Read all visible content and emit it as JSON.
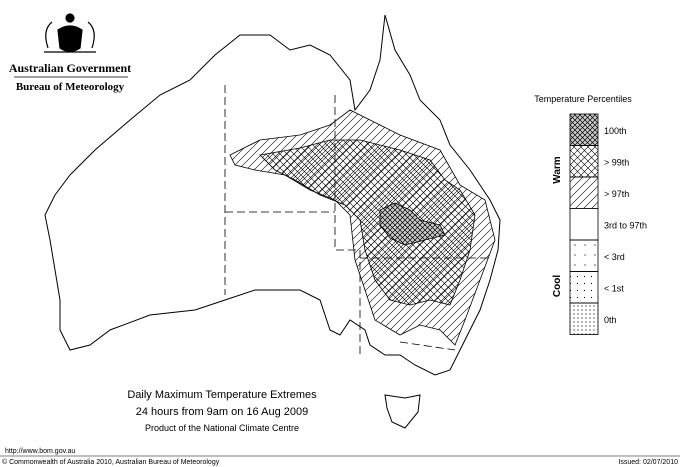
{
  "header": {
    "government": "Australian Government",
    "bureau": "Bureau of Meteorology"
  },
  "legend": {
    "title": "Temperature Percentiles",
    "warm": "Warm",
    "cool": "Cool",
    "items": [
      "100th",
      "> 99th",
      "> 97th",
      "3rd to 97th",
      "< 3rd",
      "< 1st",
      "0th"
    ]
  },
  "caption": {
    "lines": [
      "Daily Maximum Temperature Extremes",
      "24 hours from 9am on 16 Aug 2009",
      "Product of the National Climate Centre"
    ]
  },
  "footer": {
    "url": "http://www.bom.gov.au",
    "copyright": "© Commonwealth of Australia 2010, Australian Bureau of Meteorology",
    "issued": "Issued: 02/07/2010"
  }
}
